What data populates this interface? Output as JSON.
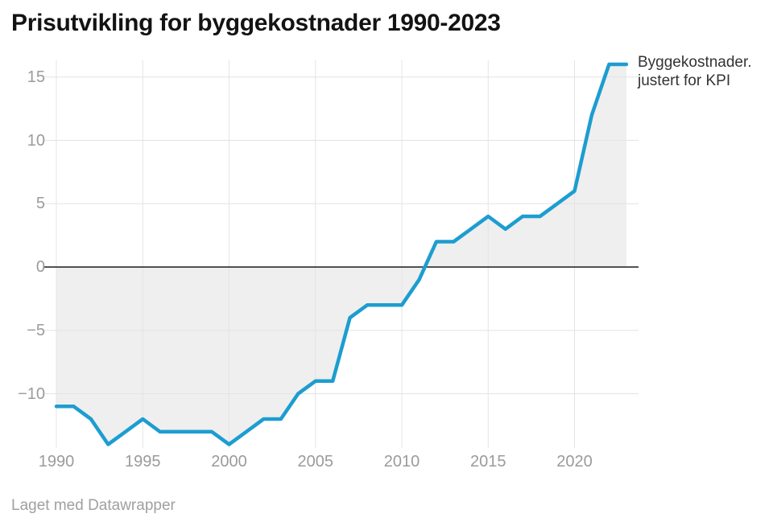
{
  "title": "Prisutvikling for byggekostnader 1990-2023",
  "footer": "Laget med Datawrapper",
  "series_label": {
    "line1": "Byggekostnader.",
    "line2": "justert for KPI"
  },
  "colors": {
    "line": "#1d9dd0",
    "area_fill": "#efefef",
    "grid": "#e4e4e4",
    "zero_line": "#1a1a1a",
    "tick_text": "#9b9b9b",
    "title_text": "#131313",
    "series_label_text": "#333333",
    "footer_text": "#a0a0a0"
  },
  "chart_data": {
    "type": "area",
    "title": "Prisutvikling for byggekostnader 1990-2023",
    "xlabel": "",
    "ylabel": "",
    "x": [
      1990,
      1991,
      1992,
      1993,
      1994,
      1995,
      1996,
      1997,
      1998,
      1999,
      2000,
      2001,
      2002,
      2003,
      2004,
      2005,
      2006,
      2007,
      2008,
      2009,
      2010,
      2011,
      2012,
      2013,
      2014,
      2015,
      2016,
      2017,
      2018,
      2019,
      2020,
      2021,
      2022,
      2023
    ],
    "series": [
      {
        "name": "Byggekostnader. justert for KPI",
        "values": [
          -11,
          -11,
          -12,
          -14,
          -13,
          -12,
          -13,
          -13,
          -13,
          -13,
          -14,
          -13,
          -12,
          -12,
          -10,
          -9,
          -9,
          -4,
          -3,
          -3,
          -3,
          -1,
          2,
          2,
          3,
          4,
          3,
          4,
          4,
          5,
          6,
          12,
          16,
          16
        ]
      }
    ],
    "baseline": 0,
    "x_ticks": [
      1990,
      1995,
      2000,
      2005,
      2010,
      2015,
      2020
    ],
    "y_ticks": [
      {
        "value": 15,
        "label": "15"
      },
      {
        "value": 10,
        "label": "10"
      },
      {
        "value": 5,
        "label": "5"
      },
      {
        "value": 0,
        "label": "0"
      },
      {
        "value": -5,
        "label": "−5"
      },
      {
        "value": -10,
        "label": "−10"
      }
    ],
    "ylim": [
      -14.5,
      16.5
    ],
    "xlim": [
      1989.25,
      2023.75
    ],
    "grid": true,
    "legend_position": "right-end-of-line"
  }
}
